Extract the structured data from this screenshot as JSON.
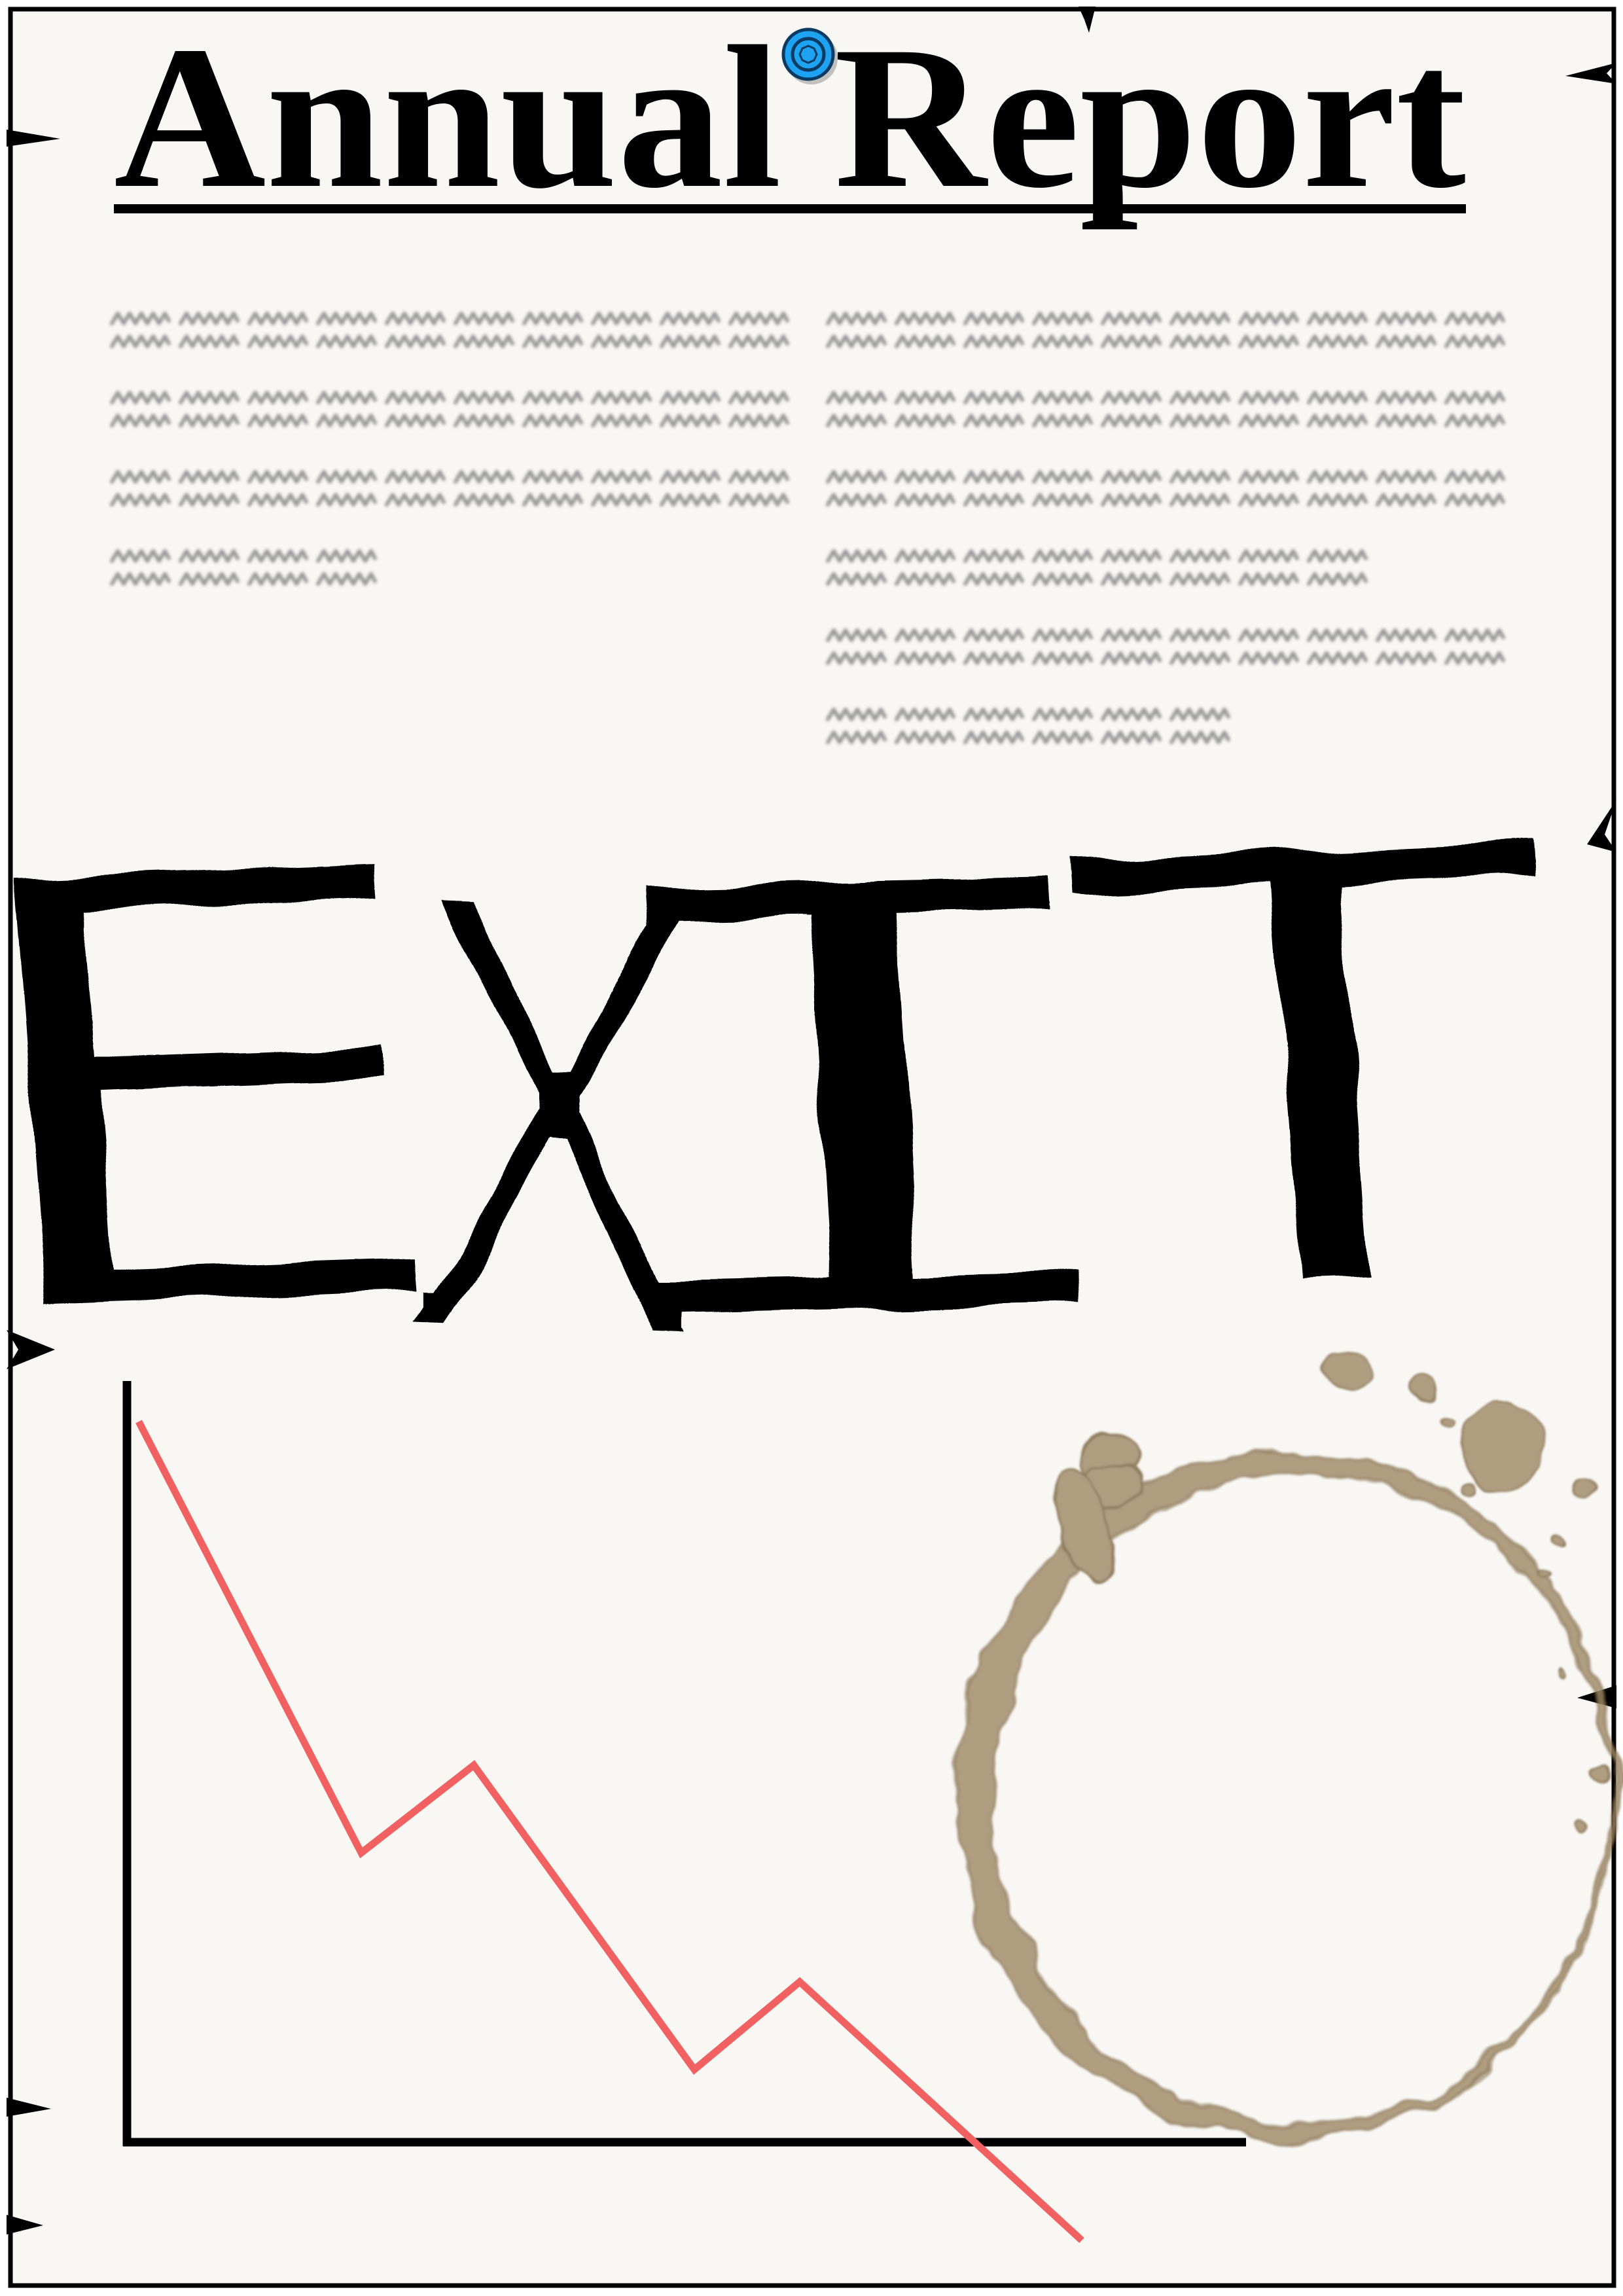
{
  "report": {
    "title": "Annual Report",
    "headline": "EXIT"
  },
  "icons": {
    "title_pin": "pushpin-icon"
  },
  "colors": {
    "page_background": "#ffffff",
    "paper": "#f8f7f3",
    "ink": "#000000",
    "placeholder_text": "#9a9a9a",
    "trend_line": "#f26161",
    "pin_fill": "#1ea3f2",
    "pin_outline": "#0b3a63",
    "coffee_stain": "#a08a67",
    "coffee_stain_rim": "#7a6340"
  }
}
